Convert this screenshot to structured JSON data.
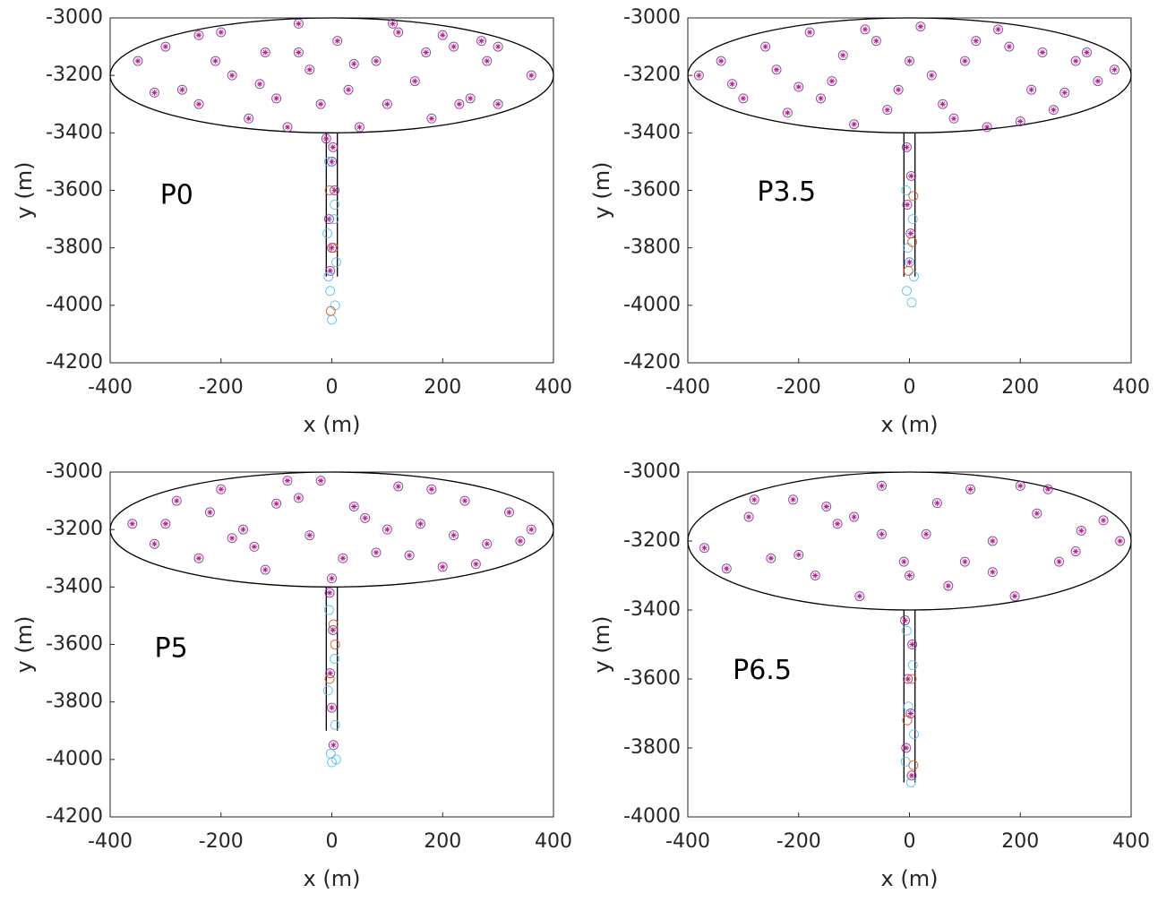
{
  "chart_data": [
    {
      "type": "scatter",
      "xlabel": "x (m)",
      "ylabel": "y (m)",
      "annotation": {
        "label": "P0",
        "x": -310,
        "y": -3620
      },
      "xlim": [
        -400,
        400
      ],
      "ylim": [
        -4200,
        -3000
      ],
      "xticks": [
        -400,
        -200,
        0,
        200,
        400
      ],
      "yticks": [
        -4200,
        -4000,
        -3800,
        -3600,
        -3400,
        -3200,
        -3000
      ],
      "ellipse": {
        "cx": 0,
        "cy": -3200,
        "rx": 400,
        "ry": 200
      },
      "channel": {
        "x": [
          -10,
          10
        ],
        "bottom": -3900
      },
      "series": [
        {
          "color": "#7e2f8e",
          "marker": "circle-star",
          "x": [
            -350,
            -300,
            -270,
            -240,
            -200,
            -180,
            -150,
            -120,
            -100,
            -80,
            -60,
            -40,
            -20,
            10,
            30,
            50,
            80,
            100,
            120,
            150,
            180,
            200,
            220,
            250,
            280,
            300,
            300,
            360,
            -320,
            -240,
            -210,
            -130,
            -60,
            40,
            110,
            170,
            230,
            270,
            -10,
            0,
            5,
            -5,
            0,
            -3,
            2
          ],
          "y": [
            -3150,
            -3100,
            -3250,
            -3300,
            -3050,
            -3200,
            -3350,
            -3120,
            -3280,
            -3380,
            -3020,
            -3180,
            -3300,
            -3080,
            -3250,
            -3380,
            -3150,
            -3300,
            -3050,
            -3220,
            -3350,
            -3060,
            -3100,
            -3280,
            -3150,
            -3300,
            -3100,
            -3200,
            -3260,
            -3060,
            -3150,
            -3230,
            -3120,
            -3160,
            -3020,
            -3120,
            -3300,
            -3080,
            -3420,
            -3500,
            -3600,
            -3700,
            -3800,
            -3880,
            -3450
          ]
        },
        {
          "color": "#4dbeee",
          "marker": "circle",
          "x": [
            -5,
            5,
            -8,
            8,
            -3,
            6,
            0,
            -6,
            4
          ],
          "y": [
            -3500,
            -3650,
            -3750,
            -3850,
            -3950,
            -4000,
            -4050,
            -3900,
            -3700
          ]
        },
        {
          "color": "#d95319",
          "marker": "circle",
          "x": [
            -4,
            3,
            -2
          ],
          "y": [
            -3600,
            -3800,
            -4020
          ]
        }
      ]
    },
    {
      "type": "scatter",
      "xlabel": "x (m)",
      "ylabel": "y (m)",
      "annotation": {
        "label": "P3.5",
        "x": -275,
        "y": -3610
      },
      "xlim": [
        -400,
        400
      ],
      "ylim": [
        -4200,
        -3000
      ],
      "xticks": [
        -400,
        -200,
        0,
        200,
        400
      ],
      "yticks": [
        -4200,
        -4000,
        -3800,
        -3600,
        -3400,
        -3200,
        -3000
      ],
      "ellipse": {
        "cx": 0,
        "cy": -3200,
        "rx": 400,
        "ry": 200
      },
      "channel": {
        "x": [
          -10,
          10
        ],
        "bottom": -3900
      },
      "series": [
        {
          "color": "#7e2f8e",
          "marker": "circle-star",
          "x": [
            -380,
            -340,
            -300,
            -260,
            -220,
            -180,
            -140,
            -100,
            -60,
            -20,
            20,
            60,
            100,
            140,
            180,
            220,
            260,
            300,
            340,
            370,
            -320,
            -240,
            -160,
            -80,
            0,
            80,
            160,
            240,
            320,
            -200,
            -120,
            -40,
            40,
            120,
            200,
            280,
            -5,
            3,
            -4,
            2,
            0
          ],
          "y": [
            -3200,
            -3150,
            -3280,
            -3100,
            -3330,
            -3050,
            -3220,
            -3370,
            -3080,
            -3250,
            -3030,
            -3300,
            -3150,
            -3380,
            -3100,
            -3250,
            -3320,
            -3150,
            -3220,
            -3180,
            -3230,
            -3180,
            -3280,
            -3040,
            -3150,
            -3350,
            -3040,
            -3120,
            -3120,
            -3240,
            -3130,
            -3320,
            -3200,
            -3080,
            -3360,
            -3260,
            -3450,
            -3550,
            -3650,
            -3750,
            -3850
          ]
        },
        {
          "color": "#4dbeee",
          "marker": "circle",
          "x": [
            -6,
            6,
            -3,
            8,
            -5,
            4,
            0
          ],
          "y": [
            -3600,
            -3700,
            -3800,
            -3900,
            -3950,
            -3990,
            -3850
          ]
        },
        {
          "color": "#d95319",
          "marker": "circle",
          "x": [
            5,
            -2,
            7
          ],
          "y": [
            -3780,
            -3880,
            -3620
          ]
        }
      ]
    },
    {
      "type": "scatter",
      "xlabel": "x (m)",
      "ylabel": "y (m)",
      "annotation": {
        "label": "P5",
        "x": -320,
        "y": -3617
      },
      "xlim": [
        -400,
        400
      ],
      "ylim": [
        -4200,
        -3000
      ],
      "xticks": [
        -400,
        -200,
        0,
        200,
        400
      ],
      "yticks": [
        -4200,
        -4000,
        -3800,
        -3600,
        -3400,
        -3200,
        -3000
      ],
      "ellipse": {
        "cx": 0,
        "cy": -3200,
        "rx": 400,
        "ry": 200
      },
      "channel": {
        "x": [
          -10,
          10
        ],
        "bottom": -3900
      },
      "series": [
        {
          "color": "#7e2f8e",
          "marker": "circle-star",
          "x": [
            -360,
            -320,
            -280,
            -240,
            -200,
            -160,
            -120,
            -80,
            -40,
            0,
            40,
            80,
            120,
            160,
            200,
            240,
            280,
            320,
            360,
            -300,
            -220,
            -140,
            -60,
            20,
            100,
            180,
            260,
            340,
            -180,
            -100,
            -20,
            60,
            140,
            220,
            -4,
            2,
            -3,
            0,
            3
          ],
          "y": [
            -3180,
            -3250,
            -3100,
            -3300,
            -3060,
            -3200,
            -3340,
            -3030,
            -3220,
            -3370,
            -3120,
            -3280,
            -3050,
            -3180,
            -3330,
            -3100,
            -3250,
            -3140,
            -3200,
            -3180,
            -3140,
            -3260,
            -3090,
            -3300,
            -3200,
            -3060,
            -3320,
            -3240,
            -3230,
            -3110,
            -3030,
            -3160,
            -3290,
            -3220,
            -3420,
            -3550,
            -3700,
            -3820,
            -3950
          ]
        },
        {
          "color": "#4dbeee",
          "marker": "circle",
          "x": [
            -5,
            5,
            -7,
            6,
            -2,
            8,
            0
          ],
          "y": [
            -3480,
            -3650,
            -3760,
            -3880,
            -3980,
            -4000,
            -4010
          ]
        },
        {
          "color": "#d95319",
          "marker": "circle",
          "x": [
            3,
            -4,
            6
          ],
          "y": [
            -3530,
            -3720,
            -3600
          ]
        }
      ]
    },
    {
      "type": "scatter",
      "xlabel": "x (m)",
      "ylabel": "y (m)",
      "annotation": {
        "label": "P6.5",
        "x": -319,
        "y": -3578
      },
      "xlim": [
        -400,
        400
      ],
      "ylim": [
        -4000,
        -3000
      ],
      "xticks": [
        -400,
        -200,
        0,
        200,
        400
      ],
      "yticks": [
        -4000,
        -3800,
        -3600,
        -3400,
        -3200,
        -3000
      ],
      "ellipse": {
        "cx": 0,
        "cy": -3200,
        "rx": 400,
        "ry": 200
      },
      "channel": {
        "x": [
          -10,
          10
        ],
        "bottom": -3900
      },
      "series": [
        {
          "color": "#7e2f8e",
          "marker": "circle-star",
          "x": [
            -370,
            -330,
            -290,
            -250,
            -210,
            -170,
            -130,
            -90,
            -50,
            -10,
            30,
            70,
            110,
            150,
            190,
            230,
            270,
            310,
            350,
            380,
            -280,
            -200,
            -100,
            0,
            100,
            200,
            300,
            -150,
            -50,
            50,
            150,
            250,
            -8,
            5,
            -3,
            2,
            -6,
            4
          ],
          "y": [
            -3220,
            -3280,
            -3130,
            -3250,
            -3080,
            -3300,
            -3150,
            -3360,
            -3040,
            -3260,
            -3180,
            -3330,
            -3050,
            -3200,
            -3360,
            -3120,
            -3260,
            -3170,
            -3140,
            -3200,
            -3080,
            -3240,
            -3130,
            -3300,
            -3260,
            -3040,
            -3230,
            -3100,
            -3180,
            -3090,
            -3290,
            -3050,
            -3430,
            -3500,
            -3600,
            -3700,
            -3800,
            -3880
          ]
        },
        {
          "color": "#4dbeee",
          "marker": "circle",
          "x": [
            -5,
            6,
            -2,
            8,
            -7,
            3
          ],
          "y": [
            -3460,
            -3560,
            -3680,
            -3760,
            -3840,
            -3900
          ]
        },
        {
          "color": "#d95319",
          "marker": "circle",
          "x": [
            4,
            -4,
            7
          ],
          "y": [
            -3600,
            -3720,
            -3850
          ]
        }
      ]
    }
  ]
}
